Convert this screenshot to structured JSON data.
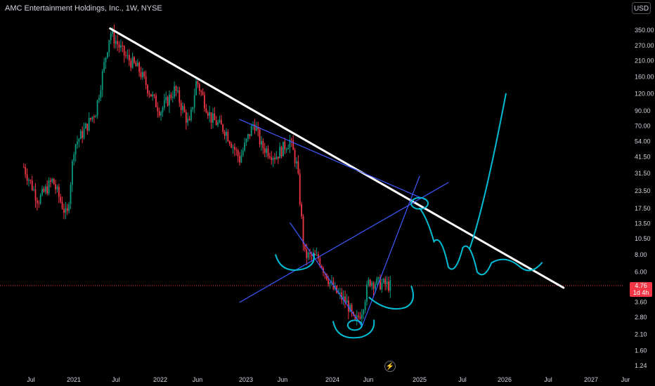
{
  "header": {
    "title": "AMC Entertainment Holdings, Inc., 1W, NYSE",
    "currency": "USD"
  },
  "price_badge": {
    "price": "4.76",
    "countdown": "1d 4h"
  },
  "colors": {
    "background": "#000000",
    "up": "#089981",
    "down": "#f23645",
    "trendline": "#ffffff",
    "channel": "#3d5afe",
    "drawing": "#00bcd4"
  },
  "chart_data": {
    "type": "candlestick",
    "title": "AMC Entertainment Holdings, Inc., 1W, NYSE",
    "y_scale": "log",
    "ylim": [
      1.1,
      440
    ],
    "y_ticks": [
      "350.00",
      "270.00",
      "210.00",
      "160.00",
      "120.00",
      "90.00",
      "70.00",
      "54.00",
      "41.50",
      "31.50",
      "23.50",
      "17.50",
      "13.50",
      "10.50",
      "8.00",
      "6.00",
      "4.60",
      "3.60",
      "2.80",
      "2.10",
      "1.60",
      "1.24"
    ],
    "x_ticks": [
      "Jul",
      "2021",
      "Jul",
      "2022",
      "Jun",
      "2023",
      "Jun",
      "2024",
      "Jun",
      "2025",
      "Jul",
      "2026",
      "Jul",
      "2027",
      "Jur"
    ],
    "last_price": 4.76,
    "series": [
      {
        "points": [
          [
            "2020-06",
            35
          ],
          [
            "2020-08",
            20
          ],
          [
            "2020-10",
            28
          ],
          [
            "2020-12",
            15
          ],
          [
            "2021-01",
            50
          ],
          [
            "2021-02",
            60
          ],
          [
            "2021-04",
            90
          ],
          [
            "2021-06",
            340
          ],
          [
            "2021-08",
            230
          ],
          [
            "2021-10",
            180
          ],
          [
            "2021-12",
            110
          ],
          [
            "2022-01",
            90
          ],
          [
            "2022-03",
            130
          ],
          [
            "2022-05",
            70
          ],
          [
            "2022-06",
            150
          ],
          [
            "2022-08",
            80
          ],
          [
            "2022-10",
            65
          ],
          [
            "2022-12",
            40
          ],
          [
            "2023-02",
            75
          ],
          [
            "2023-03",
            50
          ],
          [
            "2023-05",
            42
          ],
          [
            "2023-07",
            55
          ],
          [
            "2023-08",
            35
          ],
          [
            "2023-09",
            8
          ],
          [
            "2023-11",
            7.5
          ],
          [
            "2024-01",
            4.5
          ],
          [
            "2024-03",
            3.5
          ],
          [
            "2024-04",
            2.5
          ],
          [
            "2024-05",
            3.2
          ],
          [
            "2024-06",
            5.2
          ],
          [
            "2024-07",
            5
          ],
          [
            "2024-09",
            4.76
          ]
        ]
      }
    ],
    "annotations": {
      "descending_trendline": [
        [
          "2021-06",
          360
        ],
        [
          "2026-09",
          4.6
        ]
      ],
      "channel_upper": [
        [
          "2022-12",
          78
        ],
        [
          "2025-02",
          20
        ]
      ],
      "rising_line": [
        [
          "2022-12",
          3.6
        ],
        [
          "2025-05",
          27
        ]
      ],
      "v_left": [
        [
          "2023-07",
          13.7
        ],
        [
          "2024-05",
          2.4
        ]
      ],
      "v_right": [
        [
          "2024-05",
          2.4
        ],
        [
          "2025-01",
          30
        ]
      ],
      "projected_path": [
        [
          "2025-01",
          17.5
        ],
        [
          "2025-03",
          10
        ],
        [
          "2025-05",
          6.5
        ],
        [
          "2025-07",
          9
        ],
        [
          "2025-09",
          6
        ],
        [
          "2025-11",
          7
        ],
        [
          "2026-03",
          6.5
        ],
        [
          "2026-06",
          7
        ]
      ],
      "projected_breakout": [
        [
          "2025-08",
          9
        ],
        [
          "2025-10",
          18
        ],
        [
          "2026-01",
          120
        ]
      ]
    }
  }
}
